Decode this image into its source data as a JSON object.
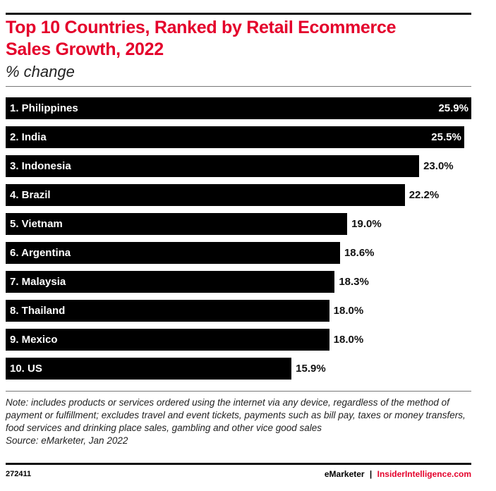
{
  "chart_data": {
    "type": "bar",
    "orientation": "horizontal",
    "title": "Top 10 Countries, Ranked by Retail Ecommerce Sales Growth, 2022",
    "subtitle": "% change",
    "categories": [
      "1. Philippines",
      "2. India",
      "3. Indonesia",
      "4. Brazil",
      "5. Vietnam",
      "6. Argentina",
      "7. Malaysia",
      "8. Thailand",
      "9. Mexico",
      "10. US"
    ],
    "values": [
      25.9,
      25.5,
      23.0,
      22.2,
      19.0,
      18.6,
      18.3,
      18.0,
      18.0,
      15.9
    ],
    "value_labels": [
      "25.9%",
      "25.5%",
      "23.0%",
      "22.2%",
      "19.0%",
      "18.6%",
      "18.3%",
      "18.0%",
      "18.0%",
      "15.9%"
    ],
    "xlim": [
      0,
      25.9
    ],
    "bar_color": "#000000",
    "title_color": "#e4002b"
  },
  "note": "Note: includes products or services ordered using the internet via any device, regardless of the method of payment or fulfillment; excludes travel and event tickets, payments such as bill pay, taxes or money transfers, food services and drinking place sales, gambling and other vice good sales",
  "source": "Source: eMarketer, Jan 2022",
  "footer": {
    "id": "272411",
    "brand1": "eMarketer",
    "sep": "|",
    "brand2": "InsiderIntelligence.com"
  }
}
